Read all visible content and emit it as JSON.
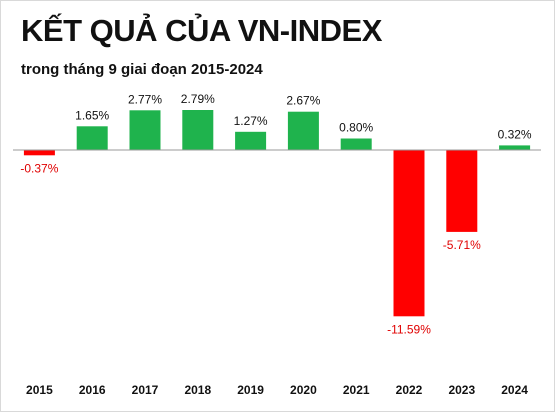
{
  "title": "KẾT QUẢ CỦA VN-INDEX",
  "subtitle": "trong tháng 9 giai đoạn 2015-2024",
  "chart_data": {
    "type": "bar",
    "title": "KẾT QUẢ CỦA VN-INDEX",
    "subtitle": "trong tháng 9 giai đoạn 2015-2024",
    "categories": [
      "2015",
      "2016",
      "2017",
      "2018",
      "2019",
      "2020",
      "2021",
      "2022",
      "2023",
      "2024"
    ],
    "values": [
      -0.37,
      1.65,
      2.77,
      2.79,
      1.27,
      2.67,
      0.8,
      -11.59,
      -5.71,
      0.32
    ],
    "data_labels": [
      "-0.37%",
      "1.65%",
      "2.77%",
      "2.79%",
      "1.27%",
      "2.67%",
      "0.80%",
      "-11.59%",
      "-5.71%",
      "0.32%"
    ],
    "ylim": [
      -12.5,
      3.5
    ],
    "grid": false,
    "legend": "none",
    "colors": {
      "positive": "#1fb34d",
      "negative": "#ff0000",
      "positive_label": "#111111",
      "negative_label": "#e00000",
      "baseline": "#999999"
    }
  }
}
